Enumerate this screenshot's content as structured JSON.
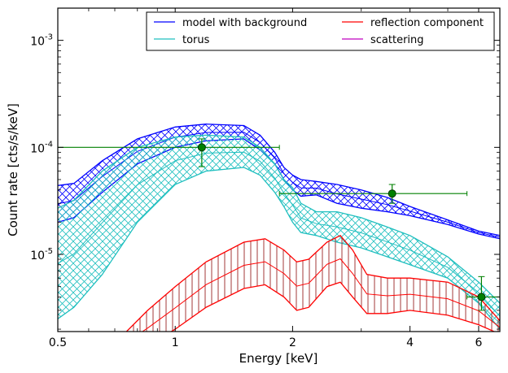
{
  "chart_data": {
    "type": "line",
    "title": "",
    "xlabel": "Energy [keV]",
    "ylabel": "Count rate [cts/s/keV]",
    "xscale": "log",
    "yscale": "log",
    "xlim": [
      0.5,
      6.8
    ],
    "ylim": [
      1.9e-06,
      0.002
    ],
    "xticks": [
      {
        "value": 0.5,
        "label": "0.5"
      },
      {
        "value": 1,
        "label": "1"
      },
      {
        "value": 2,
        "label": "2"
      },
      {
        "value": 4,
        "label": "4"
      },
      {
        "value": 6,
        "label": "6"
      }
    ],
    "yticks": [
      {
        "value": 1e-05,
        "mantissa": "10",
        "exp": "-5"
      },
      {
        "value": 0.0001,
        "mantissa": "10",
        "exp": "-4"
      },
      {
        "value": 0.001,
        "mantissa": "10",
        "exp": "-3"
      }
    ],
    "grid": false,
    "legend_position": "top-right",
    "legend": [
      {
        "label": "model with background",
        "color": "#0000ff"
      },
      {
        "label": "torus",
        "color": "#1fbfbf"
      },
      {
        "label": "reflection component",
        "color": "#ff0000"
      },
      {
        "label": "scattering",
        "color": "#bf00bf"
      }
    ],
    "series": [
      {
        "name": "model with background",
        "color": "#0000ff",
        "hatch": "diagonal-cross",
        "x": [
          0.5,
          0.55,
          0.65,
          0.8,
          1.0,
          1.2,
          1.5,
          1.65,
          1.8,
          1.9,
          2.0,
          2.1,
          2.3,
          2.6,
          3.0,
          3.5,
          4.0,
          5.0,
          6.0,
          6.8
        ],
        "y_upper": [
          4.4e-05,
          4.6e-05,
          7.5e-05,
          0.00012,
          0.000155,
          0.000165,
          0.00016,
          0.00013,
          9e-05,
          6.5e-05,
          5.5e-05,
          5e-05,
          4.8e-05,
          4.5e-05,
          4e-05,
          3.4e-05,
          2.8e-05,
          2.1e-05,
          1.65e-05,
          1.5e-05
        ],
        "y_lower": [
          2e-05,
          2.2e-05,
          3.8e-05,
          7e-05,
          0.0001,
          0.000115,
          0.00012,
          9.5e-05,
          7e-05,
          5e-05,
          4e-05,
          3.5e-05,
          3.6e-05,
          3e-05,
          2.7e-05,
          2.5e-05,
          2.3e-05,
          1.9e-05,
          1.55e-05,
          1.4e-05
        ]
      },
      {
        "name": "torus",
        "color": "#1fbfbf",
        "hatch": "diagonal-cross",
        "x": [
          0.5,
          0.55,
          0.65,
          0.8,
          1.0,
          1.2,
          1.5,
          1.65,
          1.8,
          1.9,
          2.0,
          2.1,
          2.3,
          2.6,
          3.0,
          3.5,
          4.0,
          5.0,
          6.0,
          6.8
        ],
        "y_upper": [
          2.7e-05,
          3.2e-05,
          6e-05,
          0.0001,
          0.000125,
          0.00013,
          0.000125,
          0.0001,
          7e-05,
          5e-05,
          4.2e-05,
          3e-05,
          2.5e-05,
          2.5e-05,
          2.2e-05,
          1.8e-05,
          1.5e-05,
          9.5e-06,
          5.5e-06,
          3.5e-06
        ],
        "y_lower": [
          2.5e-06,
          3.2e-06,
          6.5e-06,
          2e-05,
          4.5e-05,
          6e-05,
          6.5e-05,
          5.5e-05,
          3.8e-05,
          2.8e-05,
          2e-05,
          1.6e-05,
          1.5e-05,
          1.3e-05,
          1.15e-05,
          9.5e-06,
          8e-06,
          6e-06,
          3.5e-06,
          2e-06
        ]
      },
      {
        "name": "reflection component",
        "color": "#ff0000",
        "hatch": "vertical",
        "x": [
          0.75,
          0.85,
          1.0,
          1.2,
          1.5,
          1.7,
          1.9,
          2.05,
          2.2,
          2.45,
          2.65,
          2.85,
          3.1,
          3.5,
          4.0,
          5.0,
          6.0,
          6.8
        ],
        "y_upper": [
          1.9e-06,
          3e-06,
          5e-06,
          8.5e-06,
          1.3e-05,
          1.4e-05,
          1.1e-05,
          8.5e-06,
          9e-06,
          1.3e-05,
          1.5e-05,
          1.1e-05,
          6.5e-06,
          6e-06,
          6e-06,
          5.5e-06,
          4e-06,
          2.4e-06
        ],
        "y_lower": [
          1.2e-06,
          1.4e-06,
          2e-06,
          3.2e-06,
          4.8e-06,
          5.2e-06,
          4e-06,
          3e-06,
          3.2e-06,
          5e-06,
          5.5e-06,
          4e-06,
          2.8e-06,
          2.8e-06,
          3e-06,
          2.7e-06,
          2.2e-06,
          1.8e-06
        ]
      }
    ],
    "data_points": {
      "name": "data",
      "color": "#008000",
      "points": [
        {
          "x": 1.17,
          "y": 0.0001,
          "xerr": [
            0.5,
            1.85
          ],
          "yerr": [
            6.6e-05,
            0.00012
          ]
        },
        {
          "x": 3.6,
          "y": 3.7e-05,
          "xerr": [
            1.85,
            5.6
          ],
          "yerr": [
            3e-05,
            4.5e-05
          ]
        },
        {
          "x": 6.1,
          "y": 4e-06,
          "xerr": [
            5.6,
            6.8
          ],
          "yerr": [
            3e-06,
            6.2e-06
          ]
        }
      ]
    }
  }
}
